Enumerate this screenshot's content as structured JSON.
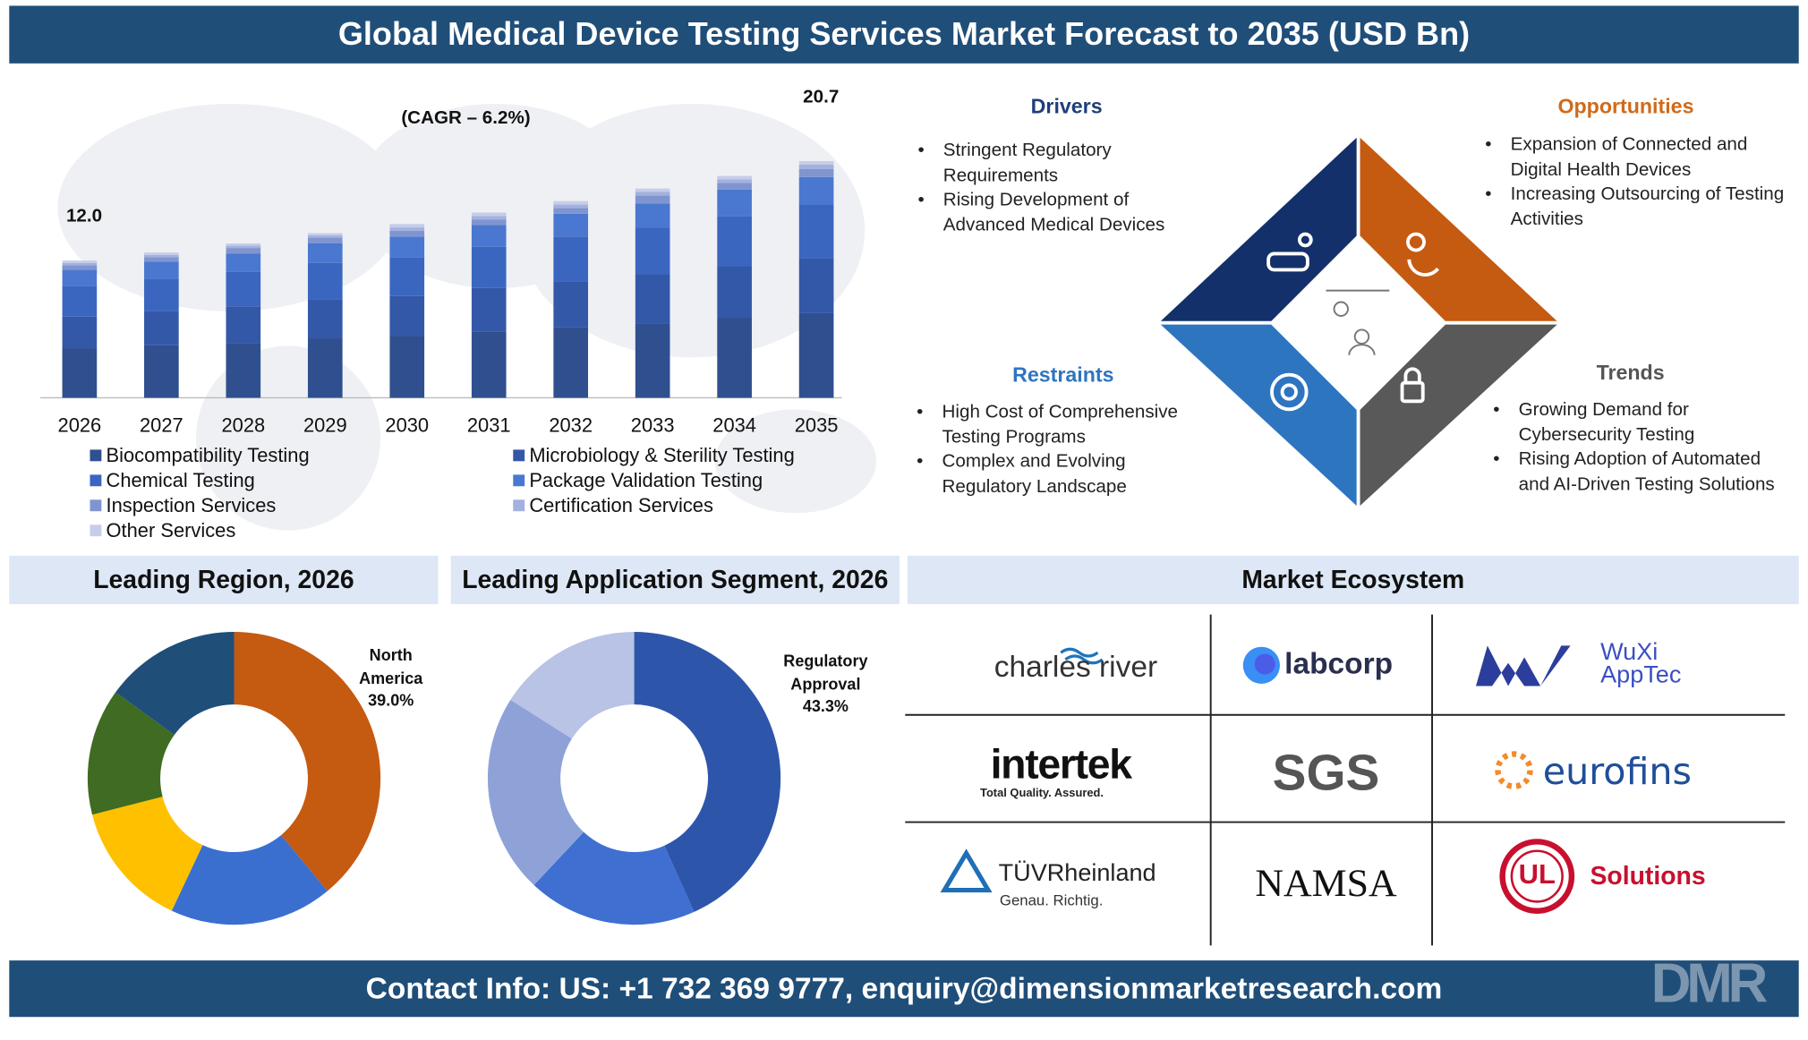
{
  "header": {
    "title": "Global Medical Device Testing Services Market Forecast to 2035 (USD Bn)"
  },
  "chart_data": [
    {
      "type": "stacked_bar",
      "annotation": "(CAGR – 6.2%)",
      "categories": [
        "2026",
        "2027",
        "2028",
        "2029",
        "2030",
        "2031",
        "2032",
        "2033",
        "2034",
        "2035"
      ],
      "series": [
        {
          "name": "Biocompatibility Testing",
          "color": "#2f4f8f",
          "values": [
            4.3,
            4.6,
            4.8,
            5.2,
            5.4,
            5.8,
            6.2,
            6.5,
            7.0,
            7.4
          ]
        },
        {
          "name": "Microbiology & Sterility Testing",
          "color": "#3458a8",
          "values": [
            2.8,
            3.0,
            3.2,
            3.4,
            3.5,
            3.8,
            4.0,
            4.3,
            4.5,
            4.8
          ]
        },
        {
          "name": "Chemical Testing",
          "color": "#3a66c0",
          "values": [
            2.7,
            2.8,
            3.0,
            3.2,
            3.4,
            3.6,
            3.9,
            4.1,
            4.4,
            4.7
          ]
        },
        {
          "name": "Package Validation Testing",
          "color": "#4a78d0",
          "values": [
            1.4,
            1.5,
            1.6,
            1.7,
            1.8,
            1.9,
            2.0,
            2.1,
            2.3,
            2.4
          ]
        },
        {
          "name": "Inspection Services",
          "color": "#8095d0",
          "values": [
            0.4,
            0.4,
            0.5,
            0.5,
            0.5,
            0.5,
            0.5,
            0.7,
            0.6,
            0.7
          ]
        },
        {
          "name": "Certification Services",
          "color": "#a2b1de",
          "values": [
            0.2,
            0.2,
            0.2,
            0.2,
            0.3,
            0.3,
            0.3,
            0.3,
            0.3,
            0.4
          ]
        },
        {
          "name": "Other Services",
          "color": "#c6cde9",
          "values": [
            0.2,
            0.2,
            0.2,
            0.2,
            0.3,
            0.3,
            0.3,
            0.3,
            0.3,
            0.3
          ]
        }
      ],
      "total_labels": [
        "12.0",
        null,
        null,
        null,
        null,
        null,
        null,
        null,
        null,
        "20.7"
      ],
      "ylim": [
        0,
        24
      ]
    },
    {
      "type": "donut",
      "title": "Leading Region, 2026",
      "categories": [
        "North America",
        null,
        null,
        null,
        null
      ],
      "values": [
        39.0,
        18,
        14,
        14,
        15
      ],
      "value_labels": [
        "39.0%",
        null,
        null,
        null,
        null
      ],
      "colors": [
        "#c55a11",
        "#3a6fd0",
        "#ffc000",
        "#3f6b22",
        "#1f4e79"
      ]
    },
    {
      "type": "donut",
      "title": "Leading Application Segment, 2026",
      "categories": [
        "Regulatory Approval",
        null,
        null,
        null
      ],
      "values": [
        43.3,
        18.7,
        22.0,
        16.0
      ],
      "value_labels": [
        "43.3%",
        null,
        null,
        null
      ],
      "colors": [
        "#2d56ab",
        "#3f6fd1",
        "#8ea2d8",
        "#b8c3e5"
      ]
    }
  ],
  "quadrants": {
    "drivers": {
      "title": "Drivers",
      "items": [
        "Stringent Regulatory Requirements",
        "Rising Development of Advanced Medical Devices"
      ]
    },
    "opportunities": {
      "title": "Opportunities",
      "items": [
        "Expansion of Connected and Digital Health Devices",
        "Increasing Outsourcing of Testing Activities"
      ]
    },
    "restraints": {
      "title": "Restraints",
      "items": [
        "High Cost of Comprehensive Testing Programs",
        "Complex and Evolving Regulatory Landscape"
      ]
    },
    "trends": {
      "title": "Trends",
      "items": [
        "Growing Demand for Cybersecurity Testing",
        "Rising Adoption of Automated and AI-Driven Testing Solutions"
      ]
    }
  },
  "ecosystem": {
    "title": "Market Ecosystem",
    "logos": [
      {
        "text": "charles river"
      },
      {
        "text": "labcorp"
      },
      {
        "text": "WuXi AppTec"
      },
      {
        "text": "intertek",
        "tagline": "Total Quality. Assured."
      },
      {
        "text": "SGS"
      },
      {
        "text": "eurofins"
      },
      {
        "text": "TÜVRheinland",
        "tagline": "Genau. Richtig."
      },
      {
        "text": "NAMSA"
      },
      {
        "text": "Solutions",
        "mark": "UL"
      }
    ]
  },
  "footer": {
    "contact": "Contact Info: US: +1 732 369 9777, enquiry@dimensionmarketresearch.com",
    "logo": "DMR"
  }
}
